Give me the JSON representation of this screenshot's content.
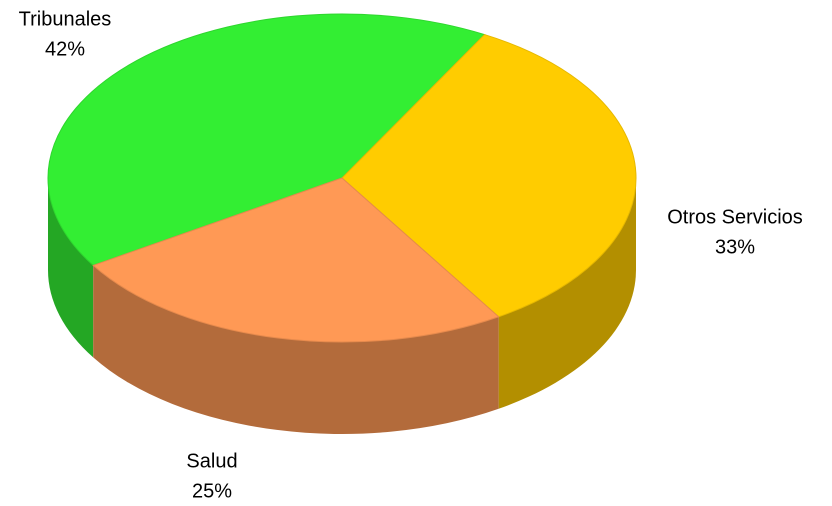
{
  "chart_data": {
    "type": "pie",
    "categories": [
      "Tribunales",
      "Otros Servicios",
      "Salud"
    ],
    "values": [
      42,
      33,
      25
    ],
    "value_labels": [
      "42%",
      "33%",
      "25%"
    ],
    "colors": [
      "#33ee33",
      "#ffcc00",
      "#ff9955"
    ]
  }
}
